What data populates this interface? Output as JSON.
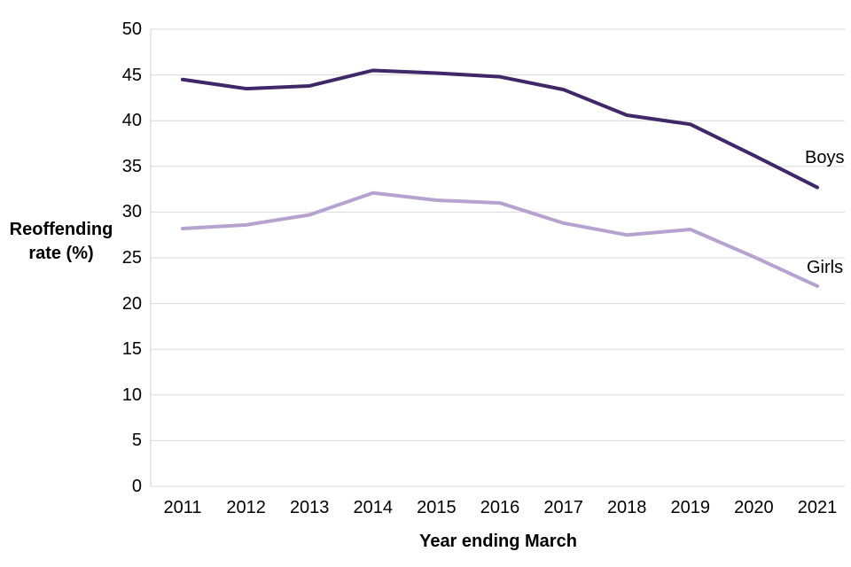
{
  "chart_data": {
    "type": "line",
    "title": "",
    "categories": [
      "2011",
      "2012",
      "2013",
      "2014",
      "2015",
      "2016",
      "2017",
      "2018",
      "2019",
      "2020",
      "2021"
    ],
    "series": [
      {
        "name": "Boys",
        "color": "#402767",
        "values": [
          44.5,
          43.5,
          43.8,
          45.5,
          45.2,
          44.8,
          43.4,
          40.6,
          39.6,
          36.2,
          32.7
        ]
      },
      {
        "name": "Girls",
        "color": "#b5a2ce",
        "values": [
          28.2,
          28.6,
          29.7,
          32.1,
          31.3,
          31.0,
          28.8,
          27.5,
          28.1,
          25.1,
          21.9
        ]
      }
    ],
    "xlabel": "Year ending March",
    "ylabel_line1": "Reoffending",
    "ylabel_line2": "rate (%)",
    "ylim": [
      0,
      50
    ],
    "ytick_step": 5,
    "grid": "horizontal",
    "legend_position": "line-end-labels",
    "gridline_color": "#d9d9d9",
    "axis_color": "#d0d0d0",
    "text_color": "#000000"
  }
}
